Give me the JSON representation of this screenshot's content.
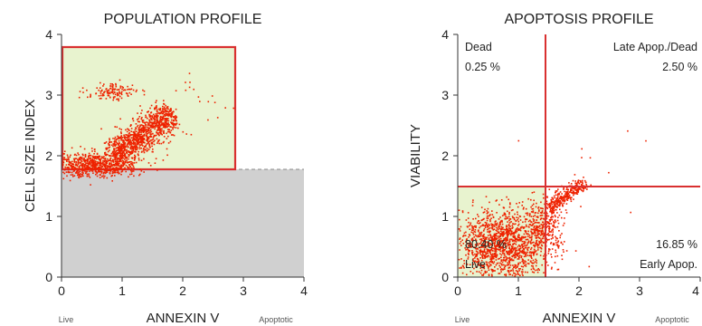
{
  "chart_data": [
    {
      "type": "scatter",
      "title": "POPULATION PROFILE",
      "xlabel": "ANNEXIN V",
      "ylabel": "CELL SIZE INDEX",
      "xlim": [
        0,
        4
      ],
      "ylim": [
        0,
        4
      ],
      "x_ticks": [
        "0",
        "1",
        "2",
        "3",
        "4"
      ],
      "y_ticks": [
        "0",
        "1",
        "2",
        "3",
        "4"
      ],
      "x_end_labels": {
        "left": "Live",
        "right": "Apoptotic"
      },
      "gate": {
        "x": [
          0,
          2.85
        ],
        "y": [
          1.75,
          3.8
        ]
      },
      "threshold_y": 1.75,
      "colors": {
        "points": "#ee2200",
        "gate_fill": "#e8f3cf",
        "gate_border": "#d93030",
        "debris_fill": "#d0d0d0"
      },
      "clusters": [
        {
          "cx": 0.55,
          "cy": 1.85,
          "sx": 0.35,
          "sy": 0.1,
          "n": 750
        },
        {
          "cx": 1.35,
          "cy": 2.35,
          "along": [
            0.75,
            0.55
          ],
          "spread": 0.6,
          "width": 0.13,
          "n": 1100
        },
        {
          "cx": 0.85,
          "cy": 3.05,
          "sx": 0.22,
          "sy": 0.07,
          "n": 130
        },
        {
          "cx": 2.35,
          "cy": 2.9,
          "sx": 0.3,
          "sy": 0.3,
          "n": 18
        }
      ]
    },
    {
      "type": "scatter",
      "title": "APOPTOSIS PROFILE",
      "xlabel": "ANNEXIN V",
      "ylabel": "VIABILITY",
      "xlim": [
        0,
        4
      ],
      "ylim": [
        0,
        4
      ],
      "x_ticks": [
        "0",
        "1",
        "2",
        "3",
        "4"
      ],
      "y_ticks": [
        "0",
        "1",
        "2",
        "3",
        "4"
      ],
      "x_end_labels": {
        "left": "Live",
        "right": "Apoptotic"
      },
      "quadrant_x": 1.45,
      "quadrant_y": 1.5,
      "quadrants": {
        "dead": {
          "name": "Dead",
          "percent": "0.25 %"
        },
        "late": {
          "name": "Late Apop./Dead",
          "percent": "2.50 %"
        },
        "live": {
          "name": "Live",
          "percent": "80.40 %"
        },
        "early": {
          "name": "Early Apop.",
          "percent": "16.85 %"
        }
      },
      "colors": {
        "points": "#ee2200",
        "live_fill": "#e8f3cf",
        "quadrant_lines": "#d93030"
      },
      "clusters": [
        {
          "cx": 0.75,
          "cy": 0.55,
          "sx": 0.38,
          "sy": 0.28,
          "n": 1500
        },
        {
          "cx": 1.45,
          "cy": 0.85,
          "sx": 0.15,
          "sy": 0.2,
          "n": 240
        },
        {
          "cx": 1.8,
          "cy": 1.35,
          "along": [
            0.65,
            0.45
          ],
          "spread": 0.35,
          "width": 0.06,
          "n": 320
        },
        {
          "cx": 2.0,
          "cy": 1.8,
          "sx": 0.6,
          "sy": 0.5,
          "n": 12
        }
      ]
    }
  ]
}
